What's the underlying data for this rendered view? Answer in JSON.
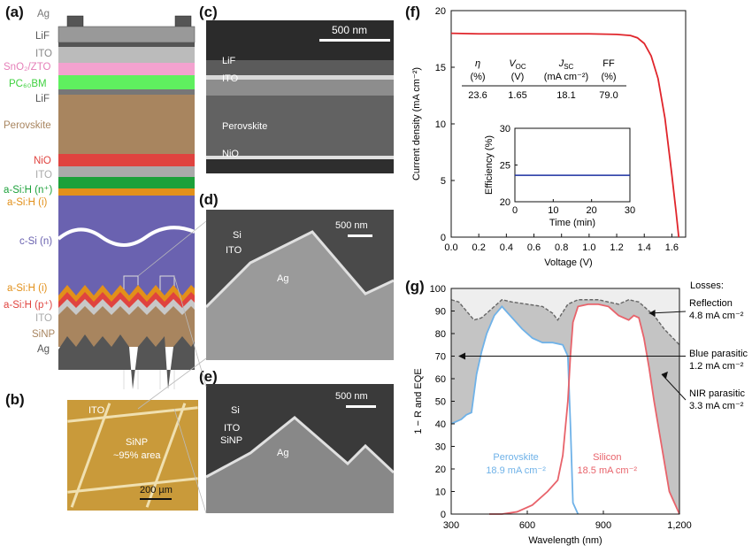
{
  "panel_labels": {
    "a": "(a)",
    "b": "(b)",
    "c": "(c)",
    "d": "(d)",
    "e": "(e)",
    "f": "(f)",
    "g": "(g)"
  },
  "stack_layers": [
    {
      "label": "Ag",
      "color": "#999999"
    },
    {
      "label": "LiF",
      "color": "#555555"
    },
    {
      "label": "ITO",
      "color": "#aaaaaa"
    },
    {
      "label": "SnO₂/ZTO",
      "color": "#e57fb8"
    },
    {
      "label": "PC₆₀BM",
      "color": "#3fd13f"
    },
    {
      "label": "LiF",
      "color": "#555555"
    },
    {
      "label": "Perovskite",
      "color": "#a8855f"
    },
    {
      "label": "NiO",
      "color": "#e0433f"
    },
    {
      "label": "ITO",
      "color": "#aaaaaa"
    },
    {
      "label": "a-Si:H (n⁺)",
      "color": "#1ca13a"
    },
    {
      "label": "a-Si:H (i)",
      "color": "#e2901a"
    },
    {
      "label": "c-Si (n)",
      "color": "#6a62b0"
    },
    {
      "label": "a-Si:H (i)",
      "color": "#e2901a"
    },
    {
      "label": "a-Si:H (p⁺)",
      "color": "#e0433f"
    },
    {
      "label": "ITO",
      "color": "#aaaaaa"
    },
    {
      "label": "SiNP",
      "color": "#a8855f"
    },
    {
      "label": "Ag",
      "color": "#555555"
    }
  ],
  "micrograph_b": {
    "ito": "ITO",
    "sinp": "SiNP",
    "area": "~95% area",
    "scale": "200 µm"
  },
  "sem_c": {
    "scale": "500 nm",
    "labels": [
      "LiF",
      "ITO",
      "Perovskite",
      "NiO"
    ]
  },
  "sem_d": {
    "scale": "500 nm",
    "labels": [
      "Si",
      "ITO",
      "Ag"
    ]
  },
  "sem_e": {
    "scale": "500 nm",
    "labels": [
      "Si",
      "ITO",
      "SiNP",
      "Ag"
    ]
  },
  "chart_data": [
    {
      "type": "line",
      "title": "",
      "xlabel": "Voltage (V)",
      "ylabel": "Current density (mA cm⁻²)",
      "xlim": [
        0,
        1.7
      ],
      "ylim": [
        0,
        20
      ],
      "xticks": [
        "0.0",
        "0.2",
        "0.4",
        "0.6",
        "0.8",
        "1.0",
        "1.2",
        "1.4",
        "1.6"
      ],
      "yticks": [
        "0",
        "5",
        "10",
        "15",
        "20"
      ],
      "series": [
        {
          "color": "#e0252b",
          "x": [
            0,
            0.2,
            0.4,
            0.6,
            0.8,
            1.0,
            1.2,
            1.3,
            1.35,
            1.4,
            1.45,
            1.5,
            1.55,
            1.6,
            1.63,
            1.65
          ],
          "y": [
            18.0,
            17.95,
            17.95,
            17.95,
            17.95,
            17.95,
            17.9,
            17.8,
            17.6,
            17.1,
            16.0,
            14.0,
            10.5,
            5.5,
            2.3,
            0
          ]
        }
      ],
      "table": {
        "headers": [
          "η (%)",
          "V_OC (V)",
          "J_SC (mA cm⁻²)",
          "FF (%)"
        ],
        "header_top": [
          "η",
          "V",
          "J",
          "FF"
        ],
        "header_sub": [
          "",
          "OC",
          "SC",
          ""
        ],
        "header_units": [
          "(%)",
          "(V)",
          "(mA cm⁻²)",
          "(%)"
        ],
        "values": [
          "23.6",
          "1.65",
          "18.1",
          "79.0"
        ]
      },
      "inset": {
        "xlabel": "Time (min)",
        "ylabel": "Efficiency (%)",
        "xlim": [
          0,
          30
        ],
        "ylim": [
          20,
          30
        ],
        "xticks": [
          "0",
          "10",
          "20",
          "30"
        ],
        "yticks": [
          "20",
          "25",
          "30"
        ],
        "series": [
          {
            "color": "#1a2fa0",
            "x": [
              0,
              30
            ],
            "y": [
              23.6,
              23.6
            ]
          }
        ]
      }
    },
    {
      "type": "area",
      "title": "",
      "xlabel": "Wavelength (nm)",
      "ylabel": "1 − R and EQE",
      "xlim": [
        300,
        1200
      ],
      "ylim": [
        0,
        100
      ],
      "xticks": [
        "300",
        "600",
        "900",
        "1,200"
      ],
      "yticks": [
        "0",
        "10",
        "20",
        "30",
        "40",
        "50",
        "60",
        "70",
        "80",
        "90",
        "100"
      ],
      "series": [
        {
          "name": "1 − R",
          "color": "#666666",
          "x": [
            300,
            330,
            360,
            390,
            420,
            450,
            480,
            500,
            540,
            600,
            660,
            700,
            720,
            760,
            800,
            840,
            880,
            920,
            960,
            1000,
            1040,
            1060,
            1100,
            1140,
            1200
          ],
          "y": [
            95,
            94,
            90,
            86,
            87,
            90,
            93,
            95,
            94,
            93,
            92,
            89,
            86,
            93,
            95,
            95,
            95,
            94,
            93,
            95,
            94,
            92,
            88,
            82,
            75
          ]
        },
        {
          "name": "Perovskite",
          "color": "#6fb2e8",
          "x": [
            300,
            340,
            360,
            380,
            400,
            420,
            440,
            470,
            500,
            540,
            580,
            620,
            660,
            700,
            740,
            760,
            770,
            780,
            800
          ],
          "y": [
            40,
            42,
            44,
            45,
            62,
            72,
            80,
            88,
            92,
            87,
            82,
            78,
            76,
            76,
            75,
            70,
            40,
            5,
            0
          ]
        },
        {
          "name": "Silicon",
          "color": "#e8636b",
          "x": [
            450,
            500,
            560,
            620,
            680,
            720,
            740,
            760,
            770,
            780,
            800,
            840,
            880,
            920,
            960,
            1000,
            1020,
            1040,
            1060,
            1080,
            1100,
            1130,
            1160,
            1200
          ],
          "y": [
            0,
            0,
            1,
            4,
            10,
            15,
            26,
            50,
            70,
            85,
            92,
            93,
            93,
            92,
            88,
            86,
            88,
            87,
            78,
            65,
            50,
            30,
            10,
            0
          ]
        }
      ],
      "losses_title": "Losses:",
      "losses": [
        {
          "name": "Reflection",
          "value": "4.8 mA cm⁻²"
        },
        {
          "name": "Blue parasitic",
          "value": "1.2 mA cm⁻²"
        },
        {
          "name": "NIR parasitic",
          "value": "3.3 mA cm⁻²"
        }
      ],
      "curve_labels": [
        {
          "name": "Perovskite",
          "value": "18.9 mA cm⁻²"
        },
        {
          "name": "Silicon",
          "value": "18.5 mA cm⁻²"
        }
      ]
    }
  ]
}
